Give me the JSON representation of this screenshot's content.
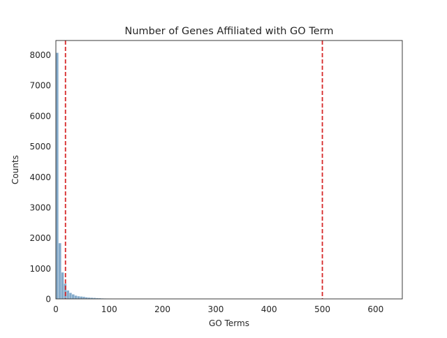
{
  "chart_data": {
    "type": "bar",
    "title": "Number of Genes Affiliated with GO Term",
    "xlabel": "GO Terms",
    "ylabel": "Counts",
    "xlim": [
      0,
      650
    ],
    "ylim": [
      0,
      8470
    ],
    "xticks": [
      0,
      100,
      200,
      300,
      400,
      500,
      600
    ],
    "yticks": [
      0,
      1000,
      2000,
      3000,
      4000,
      5000,
      6000,
      7000,
      8000
    ],
    "grid": false,
    "bar_color": "#5b8db8",
    "bins": [
      {
        "x0": 0,
        "x1": 5,
        "count": 8070
      },
      {
        "x0": 5,
        "x1": 10,
        "count": 1830
      },
      {
        "x0": 10,
        "x1": 15,
        "count": 870
      },
      {
        "x0": 15,
        "x1": 20,
        "count": 500
      },
      {
        "x0": 20,
        "x1": 25,
        "count": 280
      },
      {
        "x0": 25,
        "x1": 30,
        "count": 200
      },
      {
        "x0": 30,
        "x1": 35,
        "count": 150
      },
      {
        "x0": 35,
        "x1": 40,
        "count": 110
      },
      {
        "x0": 40,
        "x1": 45,
        "count": 90
      },
      {
        "x0": 45,
        "x1": 50,
        "count": 80
      },
      {
        "x0": 50,
        "x1": 55,
        "count": 70
      },
      {
        "x0": 55,
        "x1": 60,
        "count": 55
      },
      {
        "x0": 60,
        "x1": 65,
        "count": 45
      },
      {
        "x0": 65,
        "x1": 70,
        "count": 40
      },
      {
        "x0": 70,
        "x1": 75,
        "count": 35
      },
      {
        "x0": 75,
        "x1": 80,
        "count": 30
      },
      {
        "x0": 80,
        "x1": 85,
        "count": 25
      },
      {
        "x0": 85,
        "x1": 90,
        "count": 20
      },
      {
        "x0": 90,
        "x1": 95,
        "count": 15
      },
      {
        "x0": 95,
        "x1": 100,
        "count": 12
      },
      {
        "x0": 100,
        "x1": 105,
        "count": 10
      },
      {
        "x0": 105,
        "x1": 110,
        "count": 8
      },
      {
        "x0": 110,
        "x1": 115,
        "count": 6
      },
      {
        "x0": 115,
        "x1": 120,
        "count": 5
      },
      {
        "x0": 120,
        "x1": 125,
        "count": 4
      },
      {
        "x0": 125,
        "x1": 130,
        "count": 3
      },
      {
        "x0": 130,
        "x1": 135,
        "count": 3
      },
      {
        "x0": 135,
        "x1": 140,
        "count": 2
      }
    ],
    "reference_lines": [
      {
        "x": 18,
        "color": "#d62728",
        "style": "dashed"
      },
      {
        "x": 500,
        "color": "#d62728",
        "style": "dashed"
      }
    ]
  }
}
